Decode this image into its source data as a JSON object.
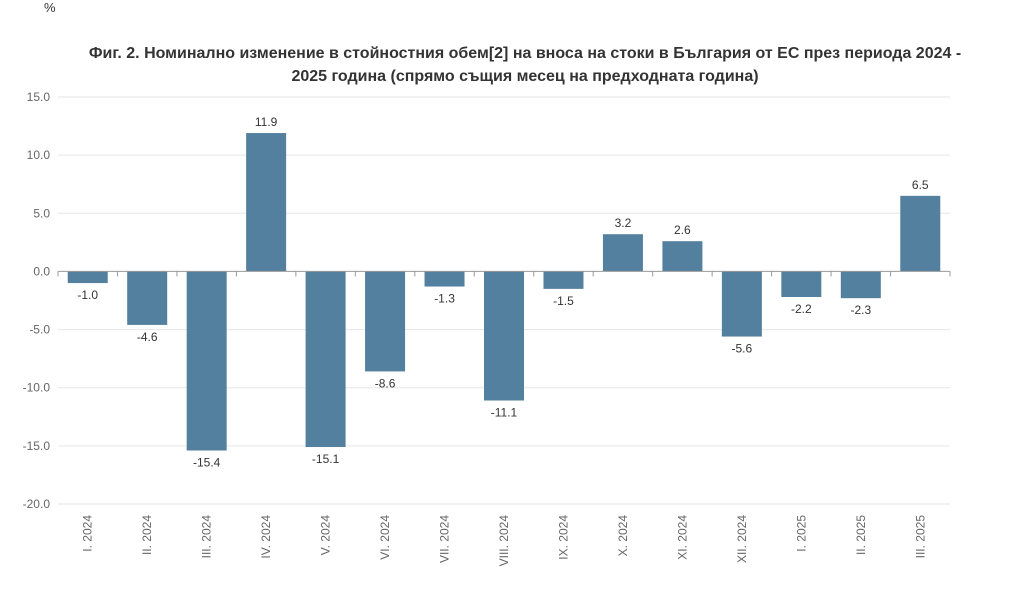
{
  "unit_label": "%",
  "chart_data": {
    "type": "bar",
    "title_line1": "Фиг. 2. Номинално изменение в стойностния обем[2] на вноса на стоки в България от ЕС през периода 2024 -",
    "title_line2": "2025 година  (спрямо същия месец на предходната година)",
    "categories": [
      "I. 2024",
      "II. 2024",
      "III. 2024",
      "IV. 2024",
      "V. 2024",
      "VI. 2024",
      "VII. 2024",
      "VIII. 2024",
      "IX. 2024",
      "X. 2024",
      "XI. 2024",
      "XII. 2024",
      "I. 2025",
      "II. 2025",
      "III. 2025"
    ],
    "values": [
      -1.0,
      -4.6,
      -15.4,
      11.9,
      -15.1,
      -8.6,
      -1.3,
      -11.1,
      -1.5,
      3.2,
      2.6,
      -5.6,
      -2.2,
      -2.3,
      6.5
    ],
    "value_labels": [
      "-1.0",
      "-4.6",
      "-15.4",
      "11.9",
      "-15.1",
      "-8.6",
      "-1.3",
      "-11.1",
      "-1.5",
      "3.2",
      "2.6",
      "-5.6",
      "-2.2",
      "-2.3",
      "6.5"
    ],
    "ylim": [
      -20,
      15
    ],
    "yticks": [
      "15.0",
      "10.0",
      "5.0",
      "0.0",
      "-5.0",
      "-10.0",
      "-15.0",
      "-20.0"
    ],
    "ytick_values": [
      15,
      10,
      5,
      0,
      -5,
      -10,
      -15,
      -20
    ],
    "grid": true,
    "bar_color": "#54809f",
    "grid_color": "#e6e6e6",
    "axis_color": "#999999"
  }
}
